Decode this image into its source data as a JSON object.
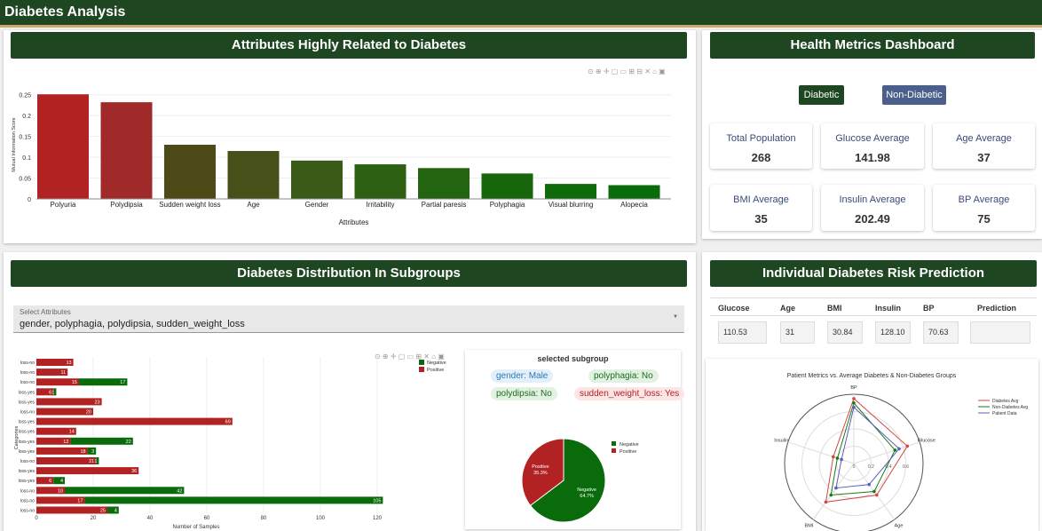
{
  "app_title": "Diabetes Analysis",
  "panels": {
    "attributes_title": "Attributes Highly Related to Diabetes",
    "metrics_title": "Health Metrics Dashboard",
    "distribution_title": "Diabetes Distribution In Subgroups",
    "prediction_title": "Individual Diabetes Risk Prediction"
  },
  "toggle": {
    "diabetic": "Diabetic",
    "non_diabetic": "Non-Diabetic"
  },
  "metrics": [
    {
      "label": "Total Population",
      "value": "268"
    },
    {
      "label": "Glucose Average",
      "value": "141.98"
    },
    {
      "label": "Age Average",
      "value": "37"
    },
    {
      "label": "BMI Average",
      "value": "35"
    },
    {
      "label": "Insulin Average",
      "value": "202.49"
    },
    {
      "label": "BP Average",
      "value": "75"
    }
  ],
  "select": {
    "label": "Select Attributes",
    "value": "gender, polyphagia, polydipsia, sudden_weight_loss"
  },
  "subgroup": {
    "title": "selected subgroup",
    "chips": [
      "gender: Male",
      "polyphagia: No",
      "polydipsia: No",
      "sudden_weight_loss: Yes"
    ]
  },
  "prediction": {
    "columns": [
      "Glucose",
      "Age",
      "BMI",
      "Insulin",
      "BP",
      "Prediction"
    ],
    "values": [
      "110.53",
      "31",
      "30.84",
      "128.10",
      "70.63",
      ""
    ]
  },
  "colors": {
    "header": "#1e4620",
    "diabetic_btn": "#1e4620",
    "nondiabetic_btn": "#4a5f8c",
    "positive": "#b22222",
    "negative": "#0a6b0a"
  },
  "chart_data": [
    {
      "type": "bar",
      "title": "",
      "xlabel": "Attributes",
      "ylabel": "Mutual Information Score",
      "categories": [
        "Polyuria",
        "Polydipsia",
        "Sudden weight loss",
        "Age",
        "Gender",
        "Irritability",
        "Partial paresis",
        "Polyphagia",
        "Visual blurring",
        "Alopecia"
      ],
      "values": [
        0.251,
        0.232,
        0.13,
        0.115,
        0.092,
        0.083,
        0.074,
        0.061,
        0.036,
        0.033
      ],
      "yticks": [
        "0",
        "0.05",
        "0.1",
        "0.15",
        "0.2",
        "0.25"
      ],
      "ylim": [
        0,
        0.26
      ]
    },
    {
      "type": "bar",
      "orientation": "horizontal",
      "xlabel": "Number of Samples",
      "ylabel": "Categories",
      "legend": [
        "Negative",
        "Positive"
      ],
      "xticks": [
        "0",
        "20",
        "40",
        "60",
        "80",
        "100",
        "120"
      ],
      "xlim": [
        0,
        125
      ],
      "categories": [
        "loss-no",
        "loss-no",
        "loss-no",
        "loss-yes",
        "loss-yes",
        "loss-no",
        "loss-yes",
        "loss-yes",
        "loss-yes",
        "loss-yes",
        "loss-no",
        "loss-yes",
        "loss-yes",
        "loss-no",
        "loss-no",
        "loss-no"
      ],
      "series": [
        {
          "name": "Positive",
          "values": [
            13,
            11,
            15,
            6,
            23,
            20,
            69,
            14,
            12,
            18,
            21,
            36,
            6,
            10,
            17,
            25
          ]
        },
        {
          "name": "Negative",
          "values": [
            0,
            0,
            17,
            1,
            0,
            0,
            0,
            0,
            22,
            3,
            1,
            0,
            4,
            42,
            105,
            4
          ]
        }
      ]
    },
    {
      "type": "pie",
      "labels": [
        "Negative",
        "Positive"
      ],
      "values": [
        64.7,
        35.3
      ],
      "slice_labels": [
        "Negative\n64.7%",
        "Positive\n35.3%"
      ]
    },
    {
      "type": "radar",
      "title": "Patient Metrics vs. Average Diabetes & Non-Diabetes Groups",
      "axes": [
        "BP",
        "Glucose",
        "Age",
        "BMI",
        "Insulin"
      ],
      "radial_ticks": [
        "0",
        "0.2",
        "0.4",
        "0.6"
      ],
      "series": [
        {
          "name": "Diabetes Avg",
          "values": [
            0.75,
            0.65,
            0.45,
            0.55,
            0.25
          ]
        },
        {
          "name": "Non-Diabetes Avg",
          "values": [
            0.7,
            0.5,
            0.4,
            0.45,
            0.2
          ]
        },
        {
          "name": "Patient Data",
          "values": [
            0.65,
            0.55,
            0.3,
            0.35,
            0.15
          ]
        }
      ]
    }
  ]
}
